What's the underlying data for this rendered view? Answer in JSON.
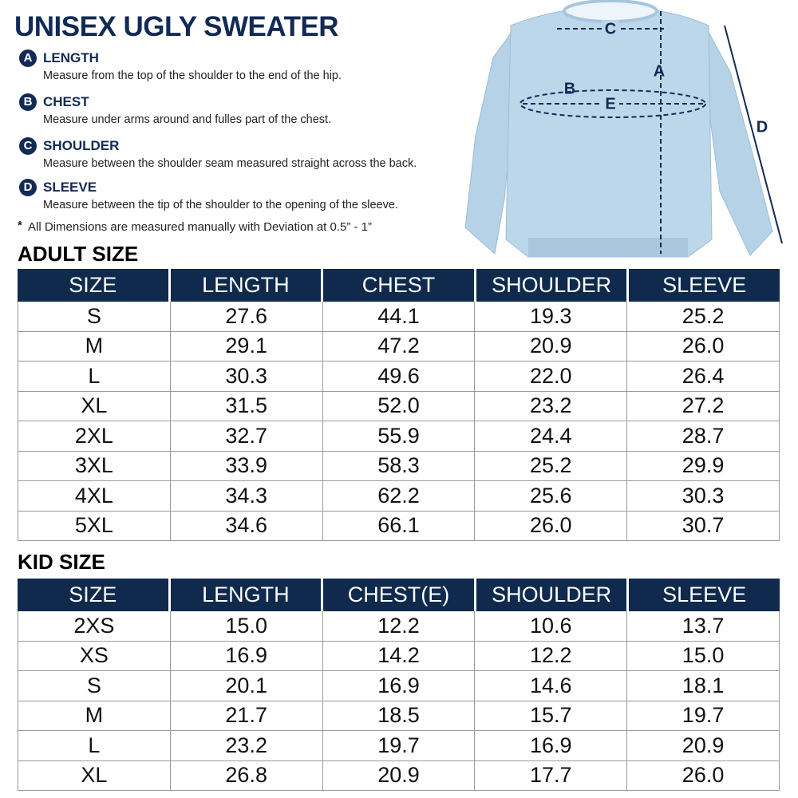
{
  "header": {
    "title": "UNISEX UGLY SWEATER"
  },
  "measures": [
    {
      "letter": "A",
      "name": "LENGTH",
      "desc": "Measure from the top of the shoulder to the end of the hip."
    },
    {
      "letter": "B",
      "name": "CHEST",
      "desc": "Measure under arms around and fulles part of the chest."
    },
    {
      "letter": "C",
      "name": "SHOULDER",
      "desc": "Measure between the shoulder seam measured straight across the back."
    },
    {
      "letter": "D",
      "name": "SLEEVE",
      "desc": "Measure between the tip of the shoulder to the opening of the sleeve."
    }
  ],
  "note": {
    "mark": "*",
    "text": "All Dimensions are measured manually with Deviation at 0.5” - 1”"
  },
  "diagram": {
    "labels": {
      "c": "C",
      "a": "A",
      "b": "B",
      "e": "E",
      "d": "D"
    }
  },
  "tables": [
    {
      "title": "ADULT SIZE",
      "columns": [
        "SIZE",
        "LENGTH",
        "CHEST",
        "SHOULDER",
        "SLEEVE"
      ],
      "rows": [
        [
          "S",
          "27.6",
          "44.1",
          "19.3",
          "25.2"
        ],
        [
          "M",
          "29.1",
          "47.2",
          "20.9",
          "26.0"
        ],
        [
          "L",
          "30.3",
          "49.6",
          "22.0",
          "26.4"
        ],
        [
          "XL",
          "31.5",
          "52.0",
          "23.2",
          "27.2"
        ],
        [
          "2XL",
          "32.7",
          "55.9",
          "24.4",
          "28.7"
        ],
        [
          "3XL",
          "33.9",
          "58.3",
          "25.2",
          "29.9"
        ],
        [
          "4XL",
          "34.3",
          "62.2",
          "25.6",
          "30.3"
        ],
        [
          "5XL",
          "34.6",
          "66.1",
          "26.0",
          "30.7"
        ]
      ]
    },
    {
      "title": "KID SIZE",
      "columns": [
        "SIZE",
        "LENGTH",
        "CHEST(E)",
        "SHOULDER",
        "SLEEVE"
      ],
      "rows": [
        [
          "2XS",
          "15.0",
          "12.2",
          "10.6",
          "13.7"
        ],
        [
          "XS",
          "16.9",
          "14.2",
          "12.2",
          "15.0"
        ],
        [
          "S",
          "20.1",
          "16.9",
          "14.6",
          "18.1"
        ],
        [
          "M",
          "21.7",
          "18.5",
          "15.7",
          "19.7"
        ],
        [
          "L",
          "23.2",
          "19.7",
          "16.9",
          "20.9"
        ],
        [
          "XL",
          "26.8",
          "20.9",
          "17.7",
          "26.0"
        ]
      ]
    }
  ]
}
